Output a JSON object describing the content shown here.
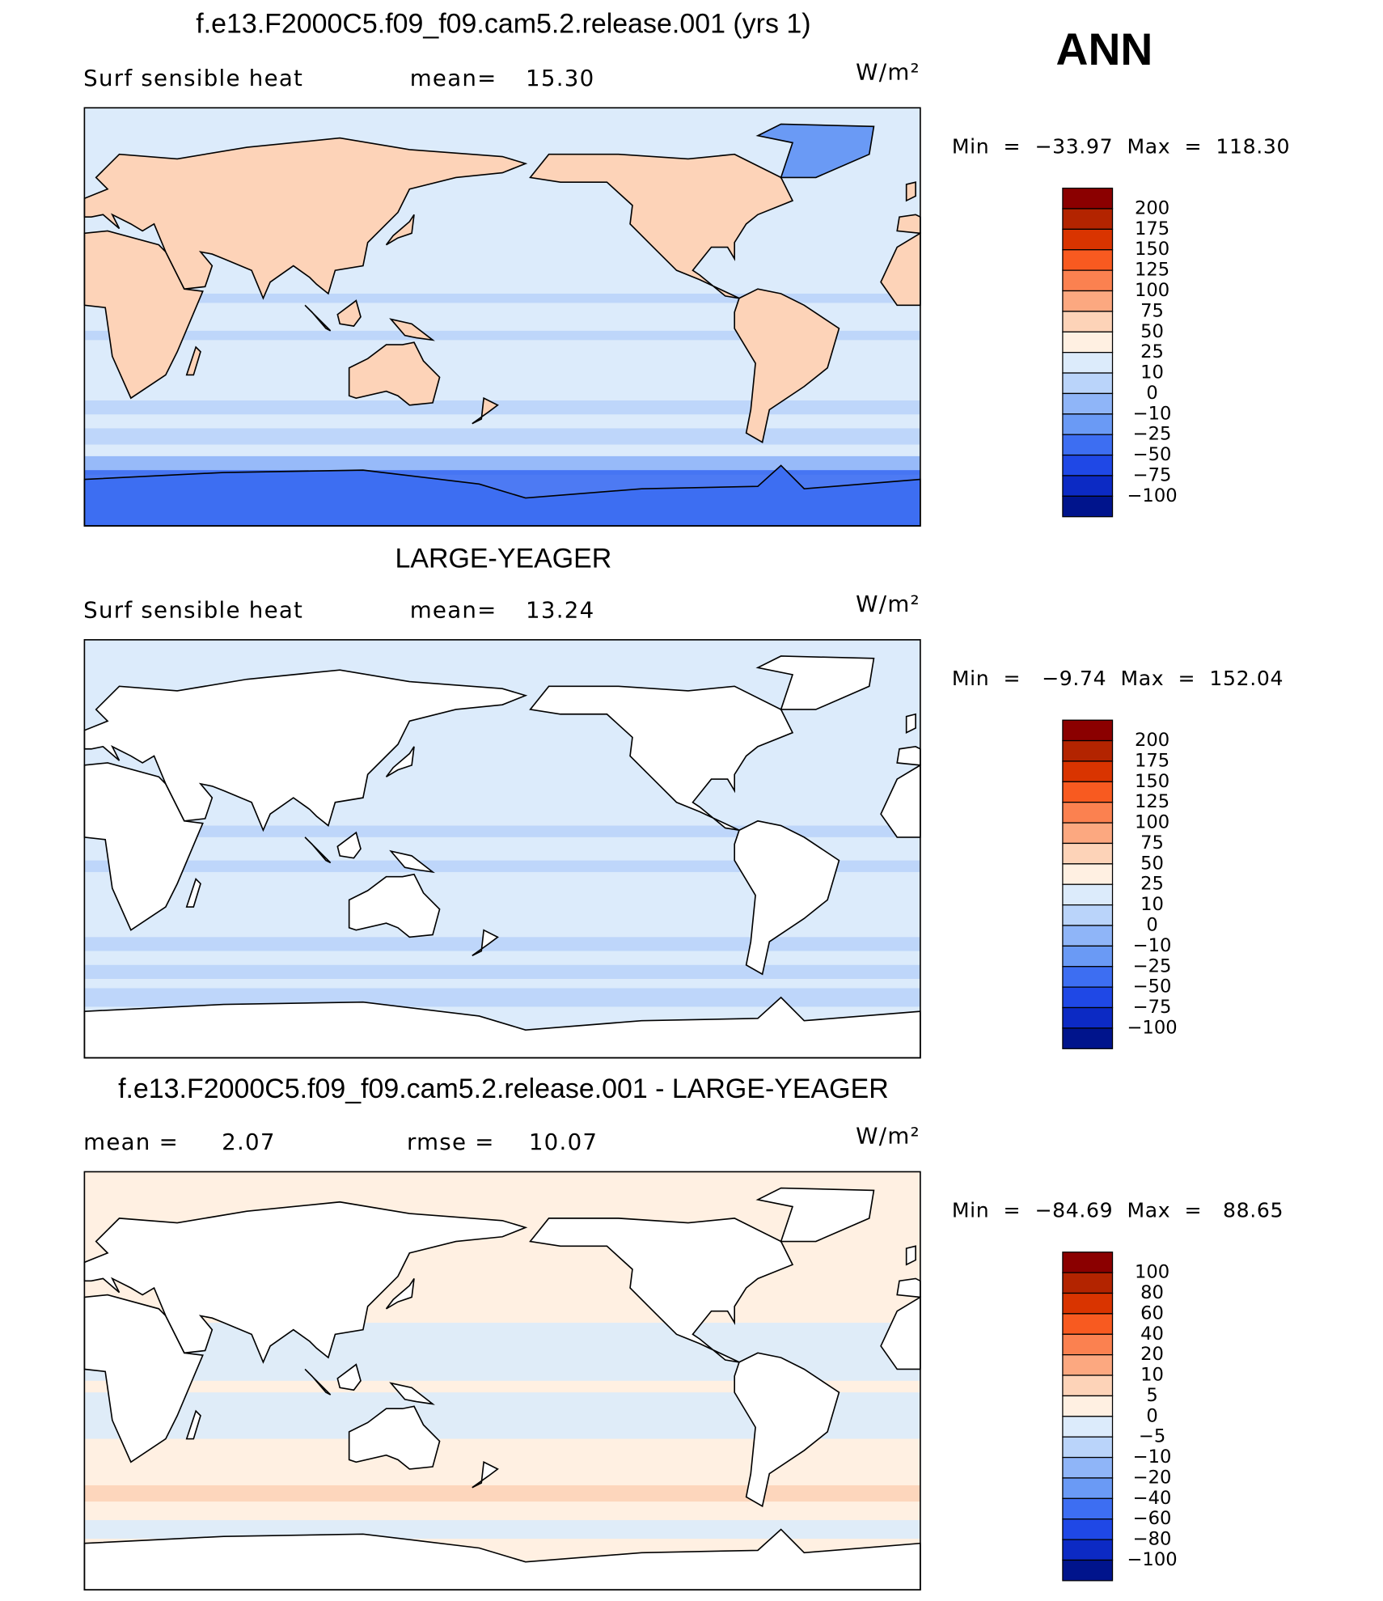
{
  "figure_label": "ANN",
  "panels": [
    {
      "title": "f.e13.F2000C5.f09_f09.cam5.2.release.001 (yrs 1)",
      "header_items": [
        "Surf sensible heat",
        "mean=",
        "15.30"
      ],
      "units": "W/m²",
      "stats": "Min  =  −33.97  Max  =  118.30",
      "colorbar": {
        "levels": [
          "200",
          "175",
          "150",
          "125",
          "100",
          "75",
          "50",
          "25",
          "10",
          "0",
          "−10",
          "−25",
          "−50",
          "−75",
          "−100"
        ],
        "colors": [
          "#8b0000",
          "#b32400",
          "#d93400",
          "#f85a20",
          "#fb8150",
          "#fca880",
          "#fdd3b8",
          "#fff0e2",
          "#dcebfb",
          "#bad4fa",
          "#8fb5f8",
          "#6a9af5",
          "#3d6ef2",
          "#1f48e6",
          "#0c2ac4",
          "#00148c"
        ]
      }
    },
    {
      "title": "LARGE-YEAGER",
      "header_items": [
        "Surf sensible heat",
        "mean=",
        "13.24"
      ],
      "units": "W/m²",
      "stats": "Min  =   −9.74  Max  =  152.04",
      "colorbar": {
        "levels": [
          "200",
          "175",
          "150",
          "125",
          "100",
          "75",
          "50",
          "25",
          "10",
          "0",
          "−10",
          "−25",
          "−50",
          "−75",
          "−100"
        ],
        "colors": [
          "#8b0000",
          "#b32400",
          "#d93400",
          "#f85a20",
          "#fb8150",
          "#fca880",
          "#fdd3b8",
          "#fff0e2",
          "#dcebfb",
          "#bad4fa",
          "#8fb5f8",
          "#6a9af5",
          "#3d6ef2",
          "#1f48e6",
          "#0c2ac4",
          "#00148c"
        ]
      }
    },
    {
      "title": "f.e13.F2000C5.f09_f09.cam5.2.release.001 - LARGE-YEAGER",
      "header_items": [
        "mean =",
        "2.07",
        "rmse =",
        "10.07"
      ],
      "units": "W/m²",
      "stats": "Min  =  −84.69  Max  =   88.65",
      "colorbar": {
        "levels": [
          "100",
          "80",
          "60",
          "40",
          "20",
          "10",
          "5",
          "0",
          "−5",
          "−10",
          "−20",
          "−40",
          "−60",
          "−80",
          "−100"
        ],
        "colors": [
          "#8b0000",
          "#b32400",
          "#d93400",
          "#f85a20",
          "#fb8150",
          "#fca880",
          "#fdd3b8",
          "#fff0e2",
          "#dcebfb",
          "#bad4fa",
          "#8fb5f8",
          "#6a9af5",
          "#3d6ef2",
          "#1f48e6",
          "#0c2ac4",
          "#00148c"
        ]
      }
    }
  ]
}
